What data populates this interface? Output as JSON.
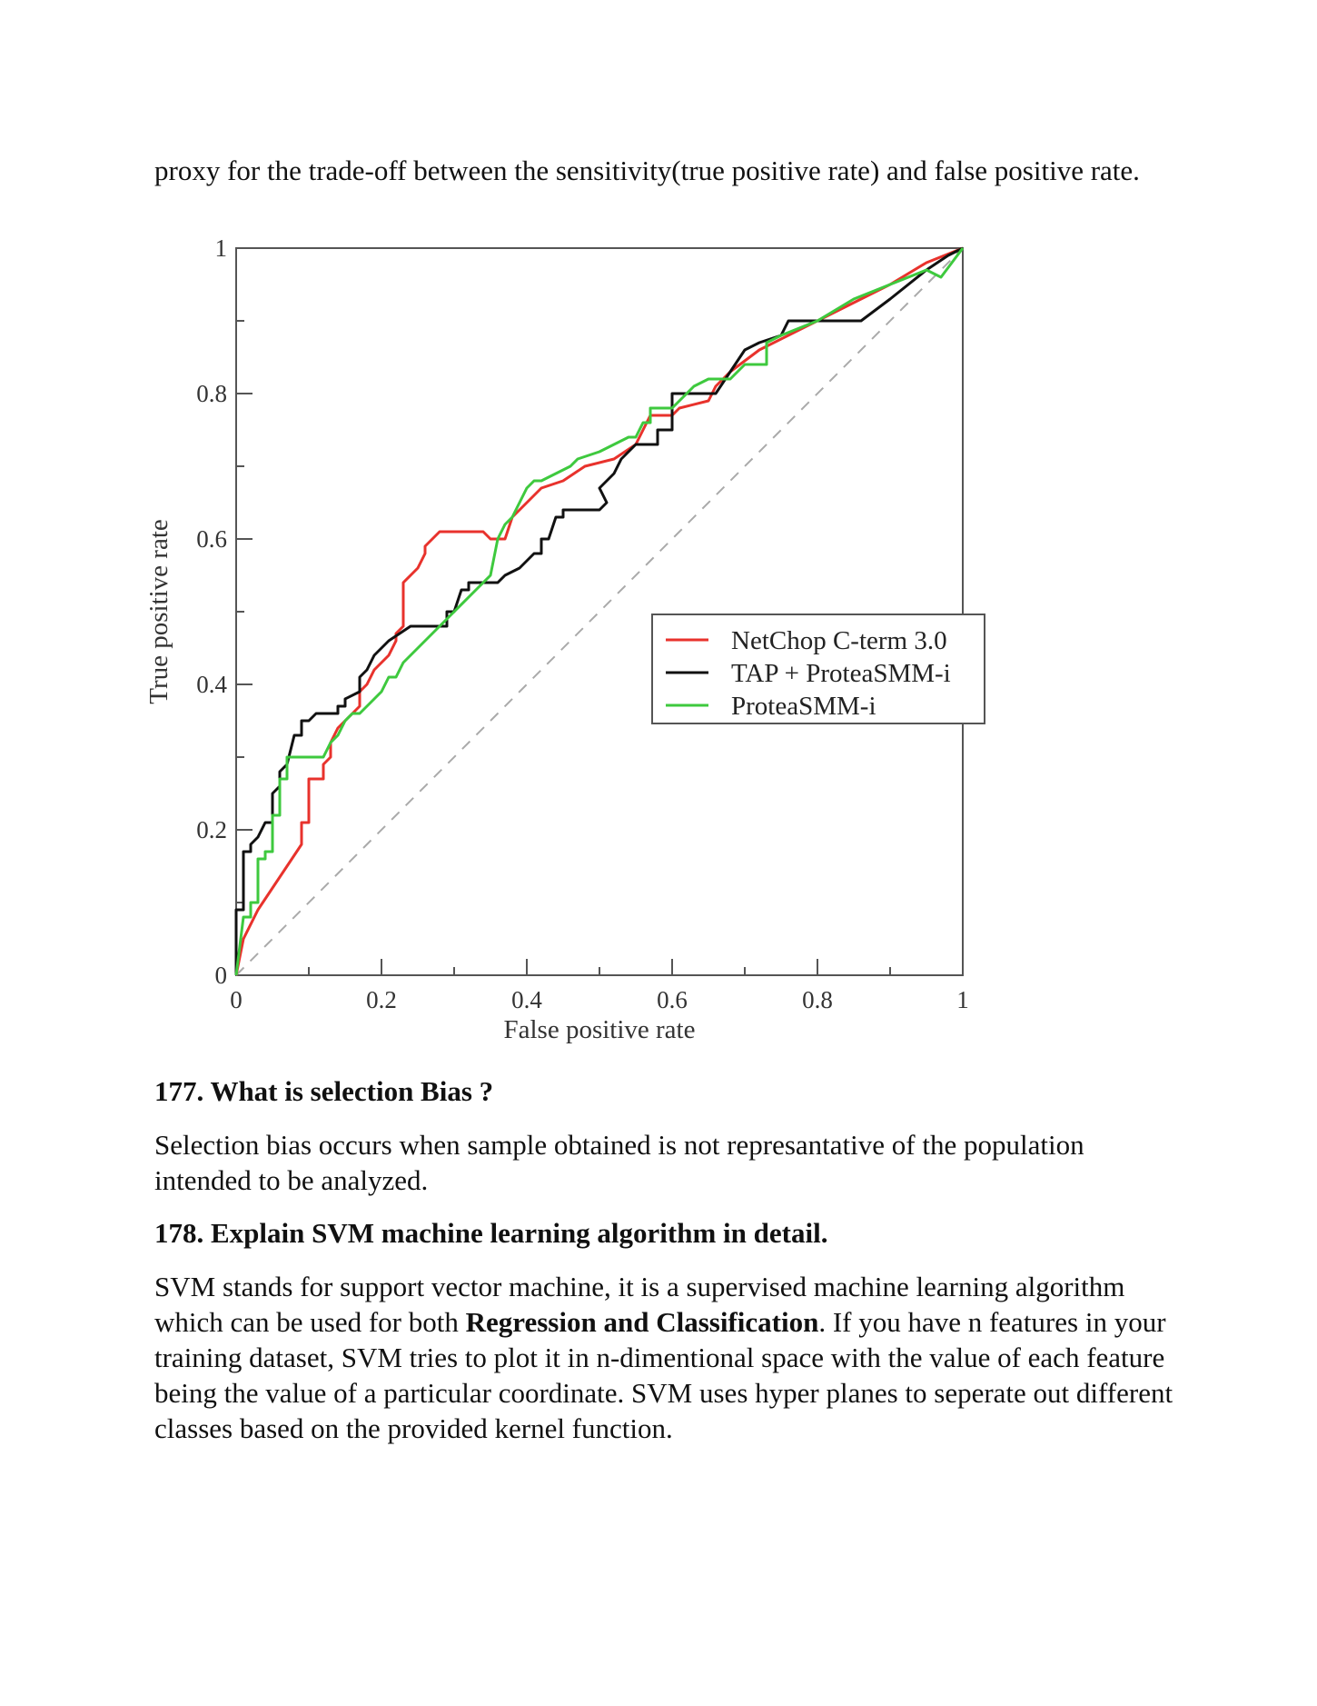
{
  "intro_text": "proxy for the trade-off between the sensitivity(true positive rate) and false positive rate.",
  "q177": {
    "heading": "177. What is selection Bias ?",
    "answer": "Selection bias occurs when sample obtained is not represantative of the population intended to be analyzed."
  },
  "q178": {
    "heading": "178. Explain SVM machine learning algorithm in detail.",
    "answer_pre": "SVM stands for support vector machine, it is a supervised machine learning algorithm which can be used for both ",
    "answer_bold": "Regression and Classification",
    "answer_post": ". If you have n features in your training dataset, SVM tries to plot it in n-dimentional space with the value of each feature being the value of a particular coordinate. SVM uses hyper planes to seperate out different classes based on the provided kernel function."
  },
  "chart_data": {
    "type": "line",
    "xlabel": "False positive rate",
    "ylabel": "True positive rate",
    "xlim": [
      0,
      1
    ],
    "ylim": [
      0,
      1
    ],
    "x_ticks": [
      "0",
      "0.2",
      "0.4",
      "0.6",
      "0.8",
      "1"
    ],
    "y_ticks": [
      "0",
      "0.2",
      "0.4",
      "0.6",
      "0.8",
      "1"
    ],
    "legend_position": "center-right",
    "diagonal_reference": true,
    "series": [
      {
        "name": "NetChop C-term 3.0",
        "color": "#e8322c",
        "points": [
          [
            0,
            0
          ],
          [
            0.01,
            0.05
          ],
          [
            0.03,
            0.09
          ],
          [
            0.05,
            0.12
          ],
          [
            0.07,
            0.15
          ],
          [
            0.09,
            0.18
          ],
          [
            0.09,
            0.21
          ],
          [
            0.1,
            0.21
          ],
          [
            0.1,
            0.26
          ],
          [
            0.1,
            0.27
          ],
          [
            0.12,
            0.27
          ],
          [
            0.12,
            0.29
          ],
          [
            0.13,
            0.3
          ],
          [
            0.13,
            0.32
          ],
          [
            0.14,
            0.34
          ],
          [
            0.15,
            0.35
          ],
          [
            0.16,
            0.36
          ],
          [
            0.17,
            0.37
          ],
          [
            0.17,
            0.39
          ],
          [
            0.18,
            0.4
          ],
          [
            0.19,
            0.42
          ],
          [
            0.21,
            0.44
          ],
          [
            0.22,
            0.46
          ],
          [
            0.22,
            0.47
          ],
          [
            0.23,
            0.48
          ],
          [
            0.23,
            0.54
          ],
          [
            0.24,
            0.55
          ],
          [
            0.25,
            0.56
          ],
          [
            0.26,
            0.58
          ],
          [
            0.26,
            0.59
          ],
          [
            0.27,
            0.6
          ],
          [
            0.28,
            0.61
          ],
          [
            0.34,
            0.61
          ],
          [
            0.35,
            0.6
          ],
          [
            0.37,
            0.6
          ],
          [
            0.38,
            0.63
          ],
          [
            0.4,
            0.65
          ],
          [
            0.42,
            0.67
          ],
          [
            0.45,
            0.68
          ],
          [
            0.48,
            0.7
          ],
          [
            0.52,
            0.71
          ],
          [
            0.55,
            0.73
          ],
          [
            0.56,
            0.75
          ],
          [
            0.57,
            0.77
          ],
          [
            0.6,
            0.77
          ],
          [
            0.61,
            0.78
          ],
          [
            0.65,
            0.79
          ],
          [
            0.66,
            0.81
          ],
          [
            0.68,
            0.83
          ],
          [
            0.72,
            0.86
          ],
          [
            0.8,
            0.9
          ],
          [
            0.9,
            0.95
          ],
          [
            0.95,
            0.98
          ],
          [
            1,
            1
          ]
        ]
      },
      {
        "name": "TAP + ProteaSMM-i",
        "color": "#111111",
        "points": [
          [
            0,
            0
          ],
          [
            0,
            0.09
          ],
          [
            0.01,
            0.09
          ],
          [
            0.01,
            0.17
          ],
          [
            0.02,
            0.17
          ],
          [
            0.02,
            0.18
          ],
          [
            0.03,
            0.19
          ],
          [
            0.04,
            0.21
          ],
          [
            0.05,
            0.21
          ],
          [
            0.05,
            0.25
          ],
          [
            0.06,
            0.26
          ],
          [
            0.06,
            0.28
          ],
          [
            0.07,
            0.29
          ],
          [
            0.08,
            0.33
          ],
          [
            0.09,
            0.33
          ],
          [
            0.09,
            0.35
          ],
          [
            0.1,
            0.35
          ],
          [
            0.11,
            0.36
          ],
          [
            0.14,
            0.36
          ],
          [
            0.14,
            0.37
          ],
          [
            0.15,
            0.37
          ],
          [
            0.15,
            0.38
          ],
          [
            0.17,
            0.39
          ],
          [
            0.17,
            0.41
          ],
          [
            0.18,
            0.42
          ],
          [
            0.19,
            0.44
          ],
          [
            0.21,
            0.46
          ],
          [
            0.24,
            0.48
          ],
          [
            0.29,
            0.48
          ],
          [
            0.29,
            0.5
          ],
          [
            0.3,
            0.5
          ],
          [
            0.31,
            0.53
          ],
          [
            0.32,
            0.53
          ],
          [
            0.32,
            0.54
          ],
          [
            0.35,
            0.54
          ],
          [
            0.36,
            0.54
          ],
          [
            0.37,
            0.55
          ],
          [
            0.39,
            0.56
          ],
          [
            0.4,
            0.57
          ],
          [
            0.41,
            0.58
          ],
          [
            0.42,
            0.58
          ],
          [
            0.42,
            0.6
          ],
          [
            0.43,
            0.6
          ],
          [
            0.44,
            0.63
          ],
          [
            0.45,
            0.63
          ],
          [
            0.45,
            0.64
          ],
          [
            0.5,
            0.64
          ],
          [
            0.51,
            0.65
          ],
          [
            0.5,
            0.67
          ],
          [
            0.52,
            0.69
          ],
          [
            0.53,
            0.71
          ],
          [
            0.55,
            0.73
          ],
          [
            0.58,
            0.73
          ],
          [
            0.58,
            0.75
          ],
          [
            0.6,
            0.75
          ],
          [
            0.6,
            0.8
          ],
          [
            0.65,
            0.8
          ],
          [
            0.66,
            0.8
          ],
          [
            0.68,
            0.83
          ],
          [
            0.7,
            0.86
          ],
          [
            0.72,
            0.87
          ],
          [
            0.75,
            0.88
          ],
          [
            0.76,
            0.9
          ],
          [
            0.86,
            0.9
          ],
          [
            0.9,
            0.93
          ],
          [
            0.95,
            0.97
          ],
          [
            0.98,
            0.99
          ],
          [
            1,
            1
          ]
        ]
      },
      {
        "name": "ProteaSMM-i",
        "color": "#3ec93e",
        "points": [
          [
            0,
            0
          ],
          [
            0.01,
            0.08
          ],
          [
            0.02,
            0.08
          ],
          [
            0.02,
            0.1
          ],
          [
            0.03,
            0.1
          ],
          [
            0.03,
            0.13
          ],
          [
            0.03,
            0.16
          ],
          [
            0.04,
            0.16
          ],
          [
            0.04,
            0.17
          ],
          [
            0.05,
            0.17
          ],
          [
            0.05,
            0.22
          ],
          [
            0.06,
            0.22
          ],
          [
            0.06,
            0.27
          ],
          [
            0.07,
            0.27
          ],
          [
            0.07,
            0.3
          ],
          [
            0.12,
            0.3
          ],
          [
            0.13,
            0.32
          ],
          [
            0.14,
            0.33
          ],
          [
            0.15,
            0.35
          ],
          [
            0.16,
            0.36
          ],
          [
            0.17,
            0.36
          ],
          [
            0.18,
            0.37
          ],
          [
            0.19,
            0.38
          ],
          [
            0.2,
            0.39
          ],
          [
            0.21,
            0.41
          ],
          [
            0.22,
            0.41
          ],
          [
            0.23,
            0.43
          ],
          [
            0.26,
            0.46
          ],
          [
            0.28,
            0.48
          ],
          [
            0.3,
            0.5
          ],
          [
            0.33,
            0.53
          ],
          [
            0.35,
            0.55
          ],
          [
            0.36,
            0.6
          ],
          [
            0.37,
            0.62
          ],
          [
            0.38,
            0.63
          ],
          [
            0.39,
            0.65
          ],
          [
            0.4,
            0.67
          ],
          [
            0.41,
            0.68
          ],
          [
            0.42,
            0.68
          ],
          [
            0.44,
            0.69
          ],
          [
            0.46,
            0.7
          ],
          [
            0.47,
            0.71
          ],
          [
            0.5,
            0.72
          ],
          [
            0.52,
            0.73
          ],
          [
            0.54,
            0.74
          ],
          [
            0.55,
            0.74
          ],
          [
            0.56,
            0.76
          ],
          [
            0.57,
            0.76
          ],
          [
            0.57,
            0.78
          ],
          [
            0.58,
            0.78
          ],
          [
            0.6,
            0.78
          ],
          [
            0.61,
            0.79
          ],
          [
            0.63,
            0.81
          ],
          [
            0.65,
            0.82
          ],
          [
            0.68,
            0.82
          ],
          [
            0.7,
            0.84
          ],
          [
            0.73,
            0.84
          ],
          [
            0.73,
            0.87
          ],
          [
            0.75,
            0.88
          ],
          [
            0.8,
            0.9
          ],
          [
            0.85,
            0.93
          ],
          [
            0.9,
            0.95
          ],
          [
            0.95,
            0.97
          ],
          [
            0.97,
            0.96
          ],
          [
            1,
            1
          ]
        ]
      }
    ]
  }
}
